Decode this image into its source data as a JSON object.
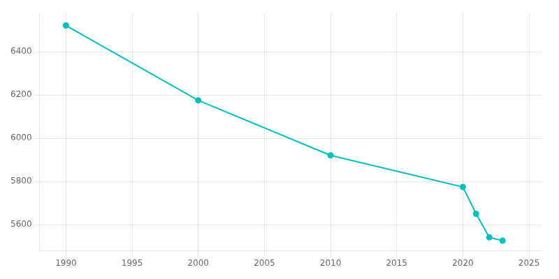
{
  "chart_data": {
    "type": "line",
    "x": [
      1990,
      2000,
      2010,
      2020,
      2021,
      2022,
      2023
    ],
    "values": [
      6521,
      6175,
      5921,
      5775,
      5651,
      5542,
      5527
    ],
    "color": "#00BFBF",
    "marker": "circle",
    "xlim": [
      1988,
      2026
    ],
    "ylim": [
      5480,
      6580
    ],
    "xticks": [
      1990,
      1995,
      2000,
      2005,
      2010,
      2015,
      2020,
      2025
    ],
    "yticks": [
      5600,
      5800,
      6000,
      6200,
      6400
    ],
    "grid": true
  }
}
